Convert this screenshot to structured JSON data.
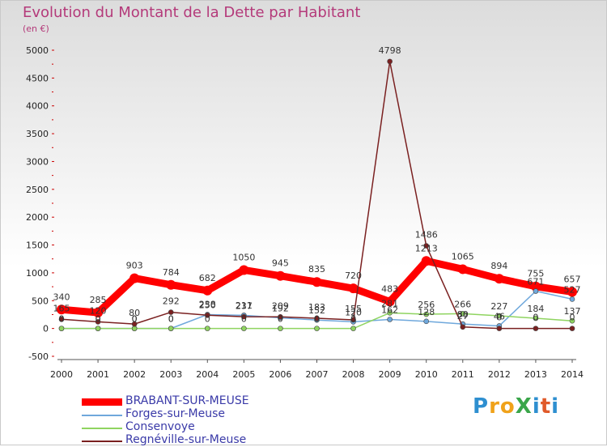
{
  "title": "Evolution du Montant de la Dette par Habitant",
  "subtitle": "(en €)",
  "logo": "ProXiti",
  "chart_data": {
    "type": "line",
    "title": "Evolution du Montant de la Dette par Habitant",
    "ylabel": "(en €)",
    "xlabel": "",
    "x": [
      "2000",
      "2001",
      "2002",
      "2003",
      "2004",
      "2005",
      "2006",
      "2007",
      "2008",
      "2009",
      "2010",
      "2011",
      "2012",
      "2013",
      "2014"
    ],
    "yticks": [
      -500,
      0,
      500,
      1000,
      1500,
      2000,
      2500,
      3000,
      3500,
      4000,
      4500,
      5000
    ],
    "ylim": [
      -500,
      5000
    ],
    "grid": false,
    "legend_position": "bottom-left",
    "series": [
      {
        "name": "BRABANT-SUR-MEUSE",
        "color": "#ff0000",
        "values": [
          340,
          285,
          903,
          784,
          682,
          1050,
          945,
          835,
          720,
          483,
          1213,
          1065,
          894,
          755,
          657
        ],
        "labels": [
          "340",
          "285",
          "903",
          "784",
          "682",
          "1050",
          "945",
          "835",
          "720",
          "483",
          "1213",
          "1065",
          "894",
          "755",
          "657"
        ]
      },
      {
        "name": "Forges-sur-Meuse",
        "color": "#6fa8dc",
        "values": [
          0,
          0,
          0,
          0,
          250,
          237,
          192,
          152,
          120,
          162,
          128,
          80,
          46,
          671,
          527
        ],
        "labels": [
          "0",
          "0",
          "0",
          "0",
          "250",
          "237",
          "192",
          "152",
          "120",
          "162",
          "128",
          "80",
          "46",
          "671",
          "527"
        ]
      },
      {
        "name": "Consenvoye",
        "color": "#8fd460",
        "values": [
          0,
          0,
          0,
          0,
          0,
          0,
          0,
          0,
          0,
          281,
          256,
          266,
          227,
          184,
          137
        ],
        "labels": [
          "0",
          "0",
          "0",
          "0",
          "0",
          "0",
          "0",
          "0",
          "0",
          "281",
          "256",
          "266",
          "227",
          "184",
          "137"
        ]
      },
      {
        "name": "Regnéville-sur-Meuse",
        "color": "#7a2020",
        "values": [
          165,
          120,
          80,
          292,
          238,
          211,
          209,
          183,
          155,
          4798,
          1486,
          27,
          0,
          0,
          0
        ],
        "labels": [
          "165",
          "120",
          "80",
          "292",
          "238",
          "211",
          "209",
          "183",
          "155",
          "4798",
          "1486",
          "27",
          "0",
          "0",
          "0"
        ]
      }
    ]
  }
}
